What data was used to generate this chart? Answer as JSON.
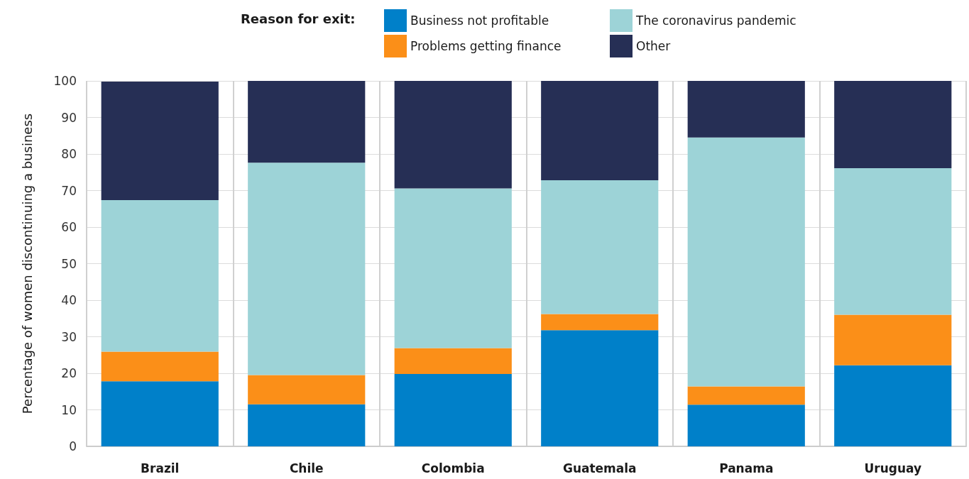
{
  "chart_data": {
    "type": "bar",
    "stacked": true,
    "ylabel": "Percentage of women discontinuing a business",
    "legend_title": "Reason for exit:",
    "categories": [
      "Brazil",
      "Chile",
      "Colombia",
      "Guatemala",
      "Panama",
      "Uruguay"
    ],
    "series": [
      {
        "name": "Business not profitable",
        "color": "#0080c9",
        "values": [
          17.8,
          11.5,
          19.8,
          31.8,
          11.4,
          22.2
        ]
      },
      {
        "name": "Problems getting finance",
        "color": "#fb8f18",
        "values": [
          8.1,
          8.0,
          7.1,
          4.4,
          5.0,
          13.8
        ]
      },
      {
        "name": "The coronavirus pandemic",
        "color": "#9dd3d7",
        "values": [
          41.5,
          58.1,
          43.7,
          36.6,
          68.1,
          40.1
        ]
      },
      {
        "name": "Other",
        "color": "#262f55",
        "values": [
          32.4,
          22.4,
          29.4,
          27.4,
          15.5,
          23.9
        ]
      }
    ],
    "ylim": [
      0,
      100
    ],
    "yticks": [
      0,
      10,
      20,
      30,
      40,
      50,
      60,
      70,
      80,
      90,
      100
    ],
    "grid": true,
    "legend": "top"
  }
}
